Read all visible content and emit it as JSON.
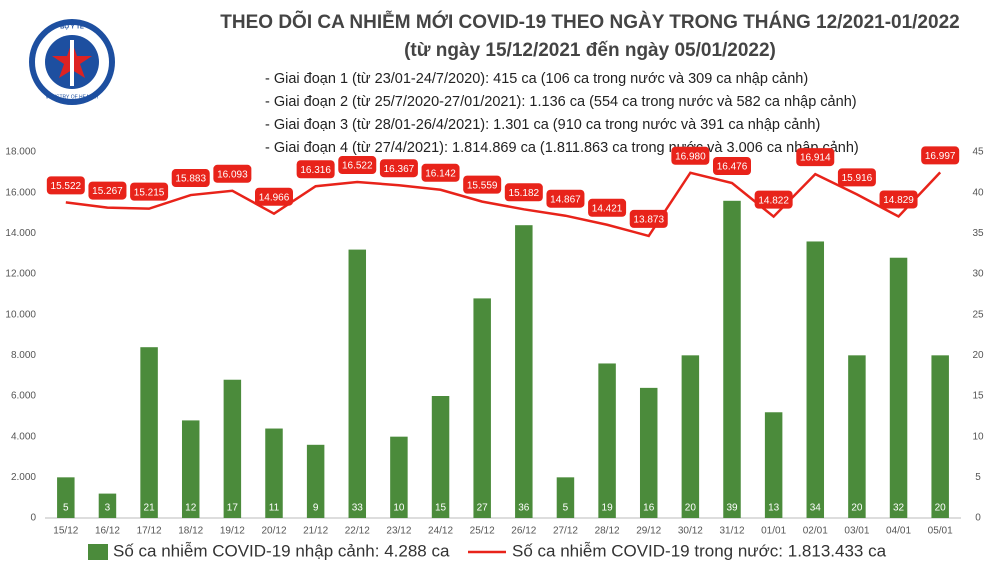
{
  "chart_data": {
    "type": "combo",
    "title": "THEO DÕI CA NHIỄM MỚI COVID-19 THEO NGÀY TRONG THÁNG 12/2021-01/2022",
    "subtitle": "(từ ngày 15/12/2021 đến ngày 05/01/2022)",
    "notes": [
      "- Giai đoạn 1 (từ 23/01-24/7/2020): 415 ca (106 ca trong nước và 309 ca nhập cảnh)",
      "- Giai đoạn 2 (từ 25/7/2020-27/01/2021): 1.136 ca (554 ca trong nước và 582 ca nhập cảnh)",
      "- Giai đoạn 3 (từ 28/01-26/4/2021): 1.301 ca (910 ca trong nước và 391 ca nhập cảnh)",
      "- Giai đoạn 4 (từ 27/4/2021): 1.814.869 ca (1.811.863 ca trong nước và 3.006 ca nhập cảnh)"
    ],
    "logo_text": [
      "BỘ Y TẾ",
      "MINISTRY OF HEALTH"
    ],
    "categories": [
      "15/12",
      "16/12",
      "17/12",
      "18/12",
      "19/12",
      "20/12",
      "21/12",
      "22/12",
      "23/12",
      "24/12",
      "25/12",
      "26/12",
      "27/12",
      "28/12",
      "29/12",
      "30/12",
      "31/12",
      "01/01",
      "02/01",
      "03/01",
      "04/01",
      "05/01"
    ],
    "series": [
      {
        "name": "Số ca nhiễm COVID-19 nhập cảnh: 4.288 ca",
        "type": "bar",
        "axis": "y2",
        "color": "#4b8b3b",
        "values": [
          5,
          3,
          21,
          12,
          17,
          11,
          9,
          33,
          10,
          15,
          27,
          36,
          5,
          19,
          16,
          20,
          39,
          13,
          34,
          20,
          32,
          20
        ]
      },
      {
        "name": "Số ca nhiễm COVID-19 trong nước: 1.813.433 ca",
        "type": "line",
        "color": "#e8231a",
        "values": [
          15522,
          15267,
          15215,
          15883,
          16093,
          14966,
          16316,
          16522,
          16367,
          16142,
          15559,
          15182,
          14867,
          14421,
          13873,
          16980,
          16476,
          14822,
          16914,
          15916,
          14829,
          16997
        ],
        "value_labels": [
          "15.522",
          "15.267",
          "15.215",
          "15.883",
          "16.093",
          "14.966",
          "16.316",
          "16.522",
          "16.367",
          "16.142",
          "15.559",
          "15.182",
          "14.867",
          "14.421",
          "13.873",
          "16.980",
          "16.476",
          "14.822",
          "16.914",
          "15.916",
          "14.829",
          "16.997"
        ]
      }
    ],
    "ylim": [
      0,
      18000
    ],
    "yticks": [
      {
        "value": 0,
        "label": "0"
      },
      {
        "value": 2000,
        "label": "2.000"
      },
      {
        "value": 4000,
        "label": "4.000"
      },
      {
        "value": 6000,
        "label": "6.000"
      },
      {
        "value": 8000,
        "label": "8.000"
      },
      {
        "value": 10000,
        "label": "10.000"
      },
      {
        "value": 12000,
        "label": "12.000"
      },
      {
        "value": 14000,
        "label": "14.000"
      },
      {
        "value": 16000,
        "label": "16.000"
      },
      {
        "value": 18000,
        "label": "18.000"
      }
    ],
    "y2lim": [
      0,
      45
    ],
    "y2ticks": [
      0,
      5,
      10,
      15,
      20,
      25,
      30,
      35,
      40,
      45
    ],
    "grid": false
  }
}
